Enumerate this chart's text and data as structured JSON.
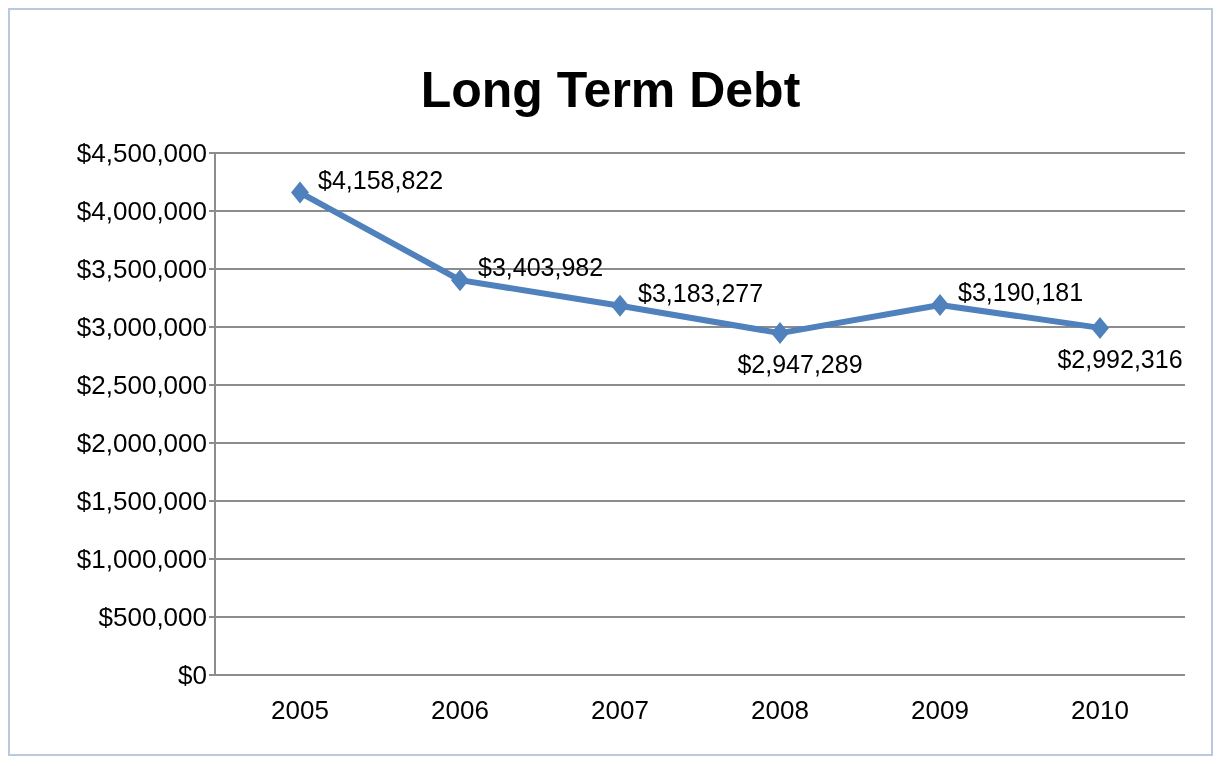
{
  "chart_data": {
    "type": "line",
    "title": "Long Term Debt",
    "categories": [
      "2005",
      "2006",
      "2007",
      "2008",
      "2009",
      "2010"
    ],
    "series": [
      {
        "color": "#4f81bd",
        "values": [
          4158822,
          3403982,
          3183277,
          2947289,
          3190181,
          2992316
        ],
        "value_labels": [
          "$4,158,822",
          "$3,403,982",
          "$3,183,277",
          "$2,947,289",
          "$3,190,181",
          "$2,992,316"
        ]
      }
    ],
    "ylim": [
      0,
      4500000
    ],
    "yticks": [
      {
        "value": 0,
        "label": "$0"
      },
      {
        "value": 500000,
        "label": "$500,000"
      },
      {
        "value": 1000000,
        "label": "$1,000,000"
      },
      {
        "value": 1500000,
        "label": "$1,500,000"
      },
      {
        "value": 2000000,
        "label": "$2,000,000"
      },
      {
        "value": 2500000,
        "label": "$2,500,000"
      },
      {
        "value": 3000000,
        "label": "$3,000,000"
      },
      {
        "value": 3500000,
        "label": "$3,500,000"
      },
      {
        "value": 4000000,
        "label": "$4,000,000"
      },
      {
        "value": 4500000,
        "label": "$4,500,000"
      }
    ],
    "grid": "y",
    "legend": false,
    "marker": "diamond",
    "line_style": "solid"
  }
}
